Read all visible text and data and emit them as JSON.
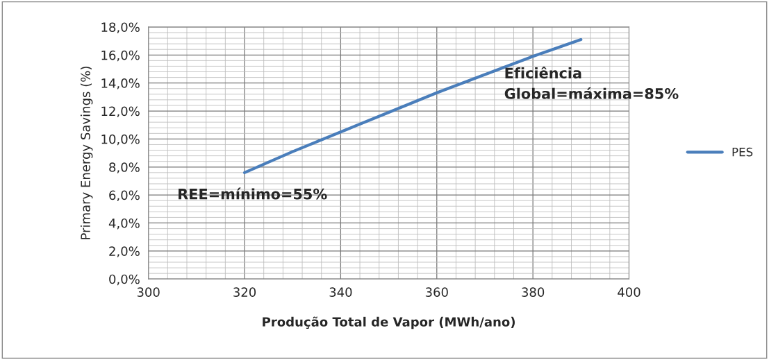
{
  "chart_data": {
    "type": "line",
    "xlabel": "Produção Total de Vapor (MWh/ano)",
    "ylabel": "Primary Energy Savings (%)",
    "x": [
      320,
      330,
      340,
      350,
      360,
      370,
      380,
      390
    ],
    "series": [
      {
        "name": "PES",
        "color": "#4a7ebb",
        "values": [
          7.6,
          9.1,
          10.5,
          11.9,
          13.3,
          14.6,
          15.9,
          17.1
        ]
      }
    ],
    "xlim": [
      300,
      400
    ],
    "xticks": [
      300,
      320,
      340,
      360,
      380,
      400
    ],
    "ylim": [
      0,
      18
    ],
    "yticks": [
      {
        "value": 0,
        "label": "0,0%"
      },
      {
        "value": 2,
        "label": "2,0%"
      },
      {
        "value": 4,
        "label": "4,0%"
      },
      {
        "value": 6,
        "label": "6,0%"
      },
      {
        "value": 8,
        "label": "8,0%"
      },
      {
        "value": 10,
        "label": "10,0%"
      },
      {
        "value": 12,
        "label": "12,0%"
      },
      {
        "value": 14,
        "label": "14,0%"
      },
      {
        "value": 16,
        "label": "16,0%"
      },
      {
        "value": 18,
        "label": "18,0%"
      }
    ],
    "annotations": [
      "Eficiência\nGlobal=máxima=85%",
      "REE=mínimo=55%"
    ],
    "grid": true,
    "legend": "right",
    "marker": "none",
    "line_style": "solid"
  }
}
